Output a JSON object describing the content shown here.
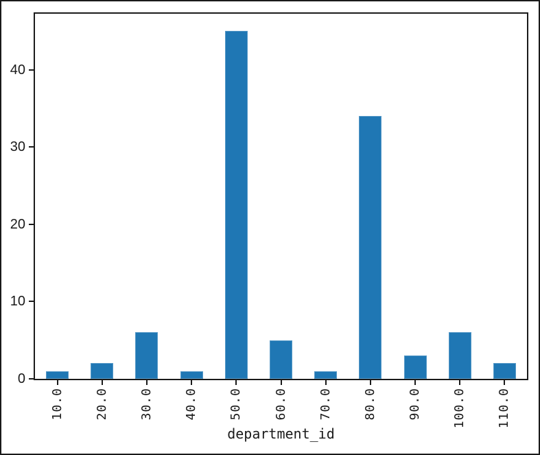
{
  "chart_data": {
    "type": "bar",
    "title": "",
    "xlabel": "department_id",
    "ylabel": "",
    "categories": [
      "10.0",
      "20.0",
      "30.0",
      "40.0",
      "50.0",
      "60.0",
      "70.0",
      "80.0",
      "90.0",
      "100.0",
      "110.0"
    ],
    "values": [
      1,
      2,
      6,
      1,
      45,
      5,
      1,
      34,
      3,
      6,
      2
    ],
    "yticks": [
      0,
      10,
      20,
      30,
      40
    ],
    "ylim": [
      0,
      47.25
    ],
    "grid": "off",
    "legend": "none",
    "bar_color": "#1f77b4",
    "axis_color": "#1a1a1a",
    "background_color": "#ffffff"
  }
}
